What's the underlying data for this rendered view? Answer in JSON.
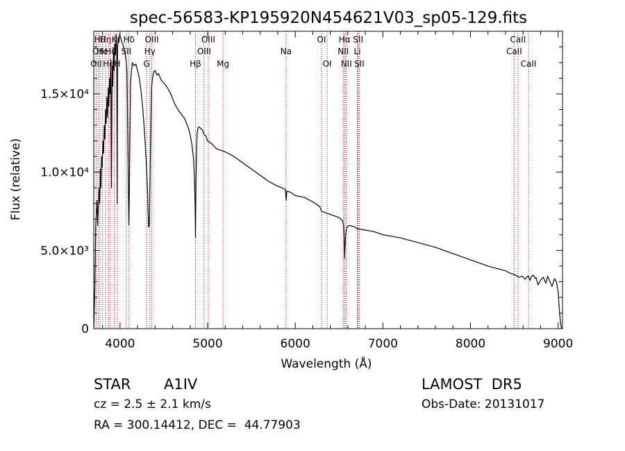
{
  "chart_data": {
    "type": "line",
    "title": "spec-56583-KP195920N454621V03_sp05-129.fits",
    "xlabel": "Wavelength (Å)",
    "ylabel": "Flux (relative)",
    "xlim": [
      3700,
      9050
    ],
    "ylim": [
      0,
      19000
    ],
    "xticks": [
      {
        "value": 4000,
        "label": "4000"
      },
      {
        "value": 5000,
        "label": "5000"
      },
      {
        "value": 6000,
        "label": "6000"
      },
      {
        "value": 7000,
        "label": "7000"
      },
      {
        "value": 8000,
        "label": "8000"
      },
      {
        "value": 9000,
        "label": "9000"
      }
    ],
    "yticks": [
      {
        "value": 0,
        "label": "0"
      },
      {
        "value": 5000,
        "label": "5.0×10³"
      },
      {
        "value": 10000,
        "label": "1.0×10⁴"
      },
      {
        "value": 15000,
        "label": "1.5×10⁴"
      }
    ],
    "grid": false,
    "series": [
      {
        "color": "#000000",
        "x": [
          3700,
          3712,
          3716,
          3722,
          3730,
          3738,
          3745,
          3752,
          3760,
          3768,
          3775,
          3782,
          3790,
          3797,
          3805,
          3812,
          3820,
          3828,
          3835,
          3842,
          3850,
          3858,
          3865,
          3872,
          3880,
          3888,
          3895,
          3902,
          3910,
          3918,
          3925,
          3932,
          3940,
          3948,
          3955,
          3962,
          3968,
          3972,
          3980,
          3988,
          3996,
          4004,
          4012,
          4020,
          4030,
          4040,
          4050,
          4060,
          4070,
          4080,
          4090,
          4096,
          4101,
          4106,
          4112,
          4120,
          4140,
          4160,
          4180,
          4200,
          4220,
          4240,
          4260,
          4280,
          4300,
          4315,
          4325,
          4335,
          4341,
          4347,
          4352,
          4360,
          4370,
          4385,
          4400,
          4420,
          4440,
          4460,
          4480,
          4500,
          4540,
          4580,
          4620,
          4660,
          4700,
          4740,
          4780,
          4800,
          4820,
          4840,
          4850,
          4856,
          4861,
          4866,
          4872,
          4880,
          4890,
          4900,
          4920,
          4940,
          4960,
          4980,
          5000,
          5050,
          5100,
          5150,
          5200,
          5300,
          5400,
          5500,
          5600,
          5700,
          5800,
          5850,
          5885,
          5890,
          5896,
          5905,
          5950,
          6000,
          6100,
          6200,
          6280,
          6300,
          6350,
          6400,
          6450,
          6500,
          6520,
          6540,
          6552,
          6558,
          6563,
          6568,
          6575,
          6590,
          6620,
          6680,
          6700,
          6800,
          6900,
          7000,
          7200,
          7400,
          7600,
          7800,
          8000,
          8200,
          8400,
          8450,
          8480,
          8498,
          8515,
          8530,
          8542,
          8555,
          8570,
          8590,
          8600,
          8610,
          8625,
          8645,
          8662,
          8680,
          8700,
          8720,
          8740,
          8750,
          8770,
          8800,
          8830,
          8860,
          8880,
          8900,
          8930,
          8960,
          8980,
          9000,
          9010,
          9020,
          9030,
          9040
        ],
        "y": [
          0,
          2500,
          4000,
          6500,
          7400,
          8200,
          6600,
          7800,
          9000,
          8000,
          10200,
          9000,
          11000,
          10300,
          12000,
          11200,
          13000,
          12100,
          14000,
          13100,
          14800,
          13500,
          15400,
          14200,
          16000,
          15000,
          17200,
          9000,
          16800,
          15500,
          17800,
          16500,
          18200,
          17500,
          18800,
          17800,
          8000,
          17800,
          18600,
          18300,
          18800,
          18600,
          18500,
          18300,
          18200,
          18000,
          17800,
          17500,
          17100,
          16400,
          11500,
          8500,
          6600,
          8500,
          12000,
          15800,
          17000,
          16800,
          16900,
          16500,
          16000,
          15200,
          14000,
          12500,
          10500,
          8600,
          6500,
          6600,
          9000,
          11000,
          13000,
          15400,
          16000,
          16400,
          16500,
          16200,
          16300,
          16000,
          15800,
          15700,
          15400,
          15000,
          14400,
          14000,
          13700,
          13400,
          12800,
          12400,
          11800,
          10800,
          9500,
          8000,
          5800,
          9000,
          11200,
          12500,
          12800,
          12900,
          12800,
          12700,
          12400,
          12300,
          12000,
          11800,
          11500,
          11400,
          11300,
          11000,
          10600,
          10200,
          9800,
          9400,
          9100,
          9000,
          8900,
          8700,
          8200,
          8800,
          8700,
          8500,
          8400,
          8100,
          7800,
          7500,
          7400,
          7300,
          7200,
          7100,
          7000,
          6900,
          6600,
          5800,
          4500,
          5200,
          6000,
          6500,
          6600,
          6500,
          6400,
          6300,
          6200,
          6000,
          5800,
          5500,
          5200,
          4800,
          4400,
          4000,
          3700,
          3550,
          3500,
          3450,
          3400,
          3380,
          3340,
          3280,
          3300,
          3360,
          3320,
          3240,
          3160,
          3330,
          3360,
          3080,
          3380,
          3400,
          3200,
          3260,
          2800,
          3100,
          3300,
          2900,
          3350,
          3100,
          2700,
          3200,
          3000,
          2400,
          1500,
          800,
          300,
          0
        ]
      }
    ],
    "lines": [
      {
        "wave": 3727,
        "label": "OII",
        "row": 2
      },
      {
        "wave": 3750,
        "label": "OII",
        "row": 1
      },
      {
        "wave": 3770,
        "label": "Hθ",
        "row": 0
      },
      {
        "wave": 3798,
        "label": "He",
        "row": 1
      },
      {
        "wave": 3835,
        "label": "Hη",
        "row": 0
      },
      {
        "wave": 3869,
        "label": "He",
        "row": 2
      },
      {
        "wave": 3889,
        "label": "Hζ",
        "row": 1
      },
      {
        "wave": 3934,
        "label": "K",
        "row": 0
      },
      {
        "wave": 3969,
        "label": "H",
        "row": 2
      },
      {
        "wave": 4071,
        "label": "SII",
        "row": 1
      },
      {
        "wave": 4102,
        "label": "Hδ",
        "row": 0
      },
      {
        "wave": 4304,
        "label": "G",
        "row": 2
      },
      {
        "wave": 4340,
        "label": "Hγ",
        "row": 1
      },
      {
        "wave": 4363,
        "label": "OIII",
        "row": 0
      },
      {
        "wave": 4861,
        "label": "Hβ",
        "row": 2
      },
      {
        "wave": 4959,
        "label": "OIII",
        "row": 1
      },
      {
        "wave": 5007,
        "label": "OIII",
        "row": 0
      },
      {
        "wave": 5175,
        "label": "Mg",
        "row": 2
      },
      {
        "wave": 5894,
        "label": "Na",
        "row": 1
      },
      {
        "wave": 6300,
        "label": "OI",
        "row": 0
      },
      {
        "wave": 6364,
        "label": "OI",
        "row": 2
      },
      {
        "wave": 6548,
        "label": "NII",
        "row": 1
      },
      {
        "wave": 6563,
        "label": "Hα",
        "row": 0
      },
      {
        "wave": 6583,
        "label": "NII",
        "row": 2
      },
      {
        "wave": 6708,
        "label": "Li",
        "row": 1
      },
      {
        "wave": 6717,
        "label": "SII",
        "row": 0
      },
      {
        "wave": 6731,
        "label": "SII",
        "row": 2
      },
      {
        "wave": 8498,
        "label": "CaII",
        "row": 1
      },
      {
        "wave": 8542,
        "label": "CaII",
        "row": 0
      },
      {
        "wave": 8662,
        "label": "CaII",
        "row": 2
      }
    ]
  },
  "info": {
    "object_class": "STAR",
    "subclass": "A1IV",
    "survey": "LAMOST  DR5",
    "redshift": "cz = 2.5 ± 2.1 km/s",
    "obs_date": "Obs-Date: 20131017",
    "coords": "RA = 300.14412, DEC =  44.77903"
  }
}
